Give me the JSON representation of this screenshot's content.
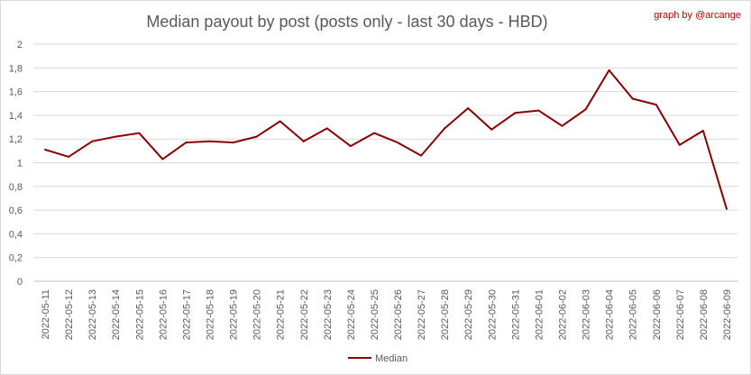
{
  "chart_data": {
    "type": "line",
    "title": "Median payout by post (posts only - last 30 days - HBD)",
    "credit": "graph by @arcange",
    "xlabel": "",
    "ylabel": "",
    "ylim": [
      0,
      2
    ],
    "yticks": [
      "0",
      "0,2",
      "0,4",
      "0,6",
      "0,8",
      "1",
      "1,2",
      "1,4",
      "1,6",
      "1,8",
      "2"
    ],
    "grid": true,
    "legend_position": "bottom",
    "categories": [
      "2022-05-11",
      "2022-05-12",
      "2022-05-13",
      "2022-05-14",
      "2022-05-15",
      "2022-05-16",
      "2022-05-17",
      "2022-05-18",
      "2022-05-19",
      "2022-05-20",
      "2022-05-21",
      "2022-05-22",
      "2022-05-23",
      "2022-05-24",
      "2022-05-25",
      "2022-05-26",
      "2022-05-27",
      "2022-05-28",
      "2022-05-29",
      "2022-05-30",
      "2022-05-31",
      "2022-06-01",
      "2022-06-02",
      "2022-06-03",
      "2022-06-04",
      "2022-06-05",
      "2022-06-06",
      "2022-06-07",
      "2022-06-08",
      "2022-06-09"
    ],
    "series": [
      {
        "name": "Median",
        "color": "#8b0000",
        "values": [
          1.11,
          1.05,
          1.18,
          1.22,
          1.25,
          1.03,
          1.17,
          1.18,
          1.17,
          1.22,
          1.35,
          1.18,
          1.29,
          1.14,
          1.25,
          1.17,
          1.06,
          1.29,
          1.46,
          1.28,
          1.42,
          1.44,
          1.31,
          1.45,
          1.78,
          1.54,
          1.49,
          1.15,
          1.27,
          0.61
        ]
      }
    ]
  }
}
